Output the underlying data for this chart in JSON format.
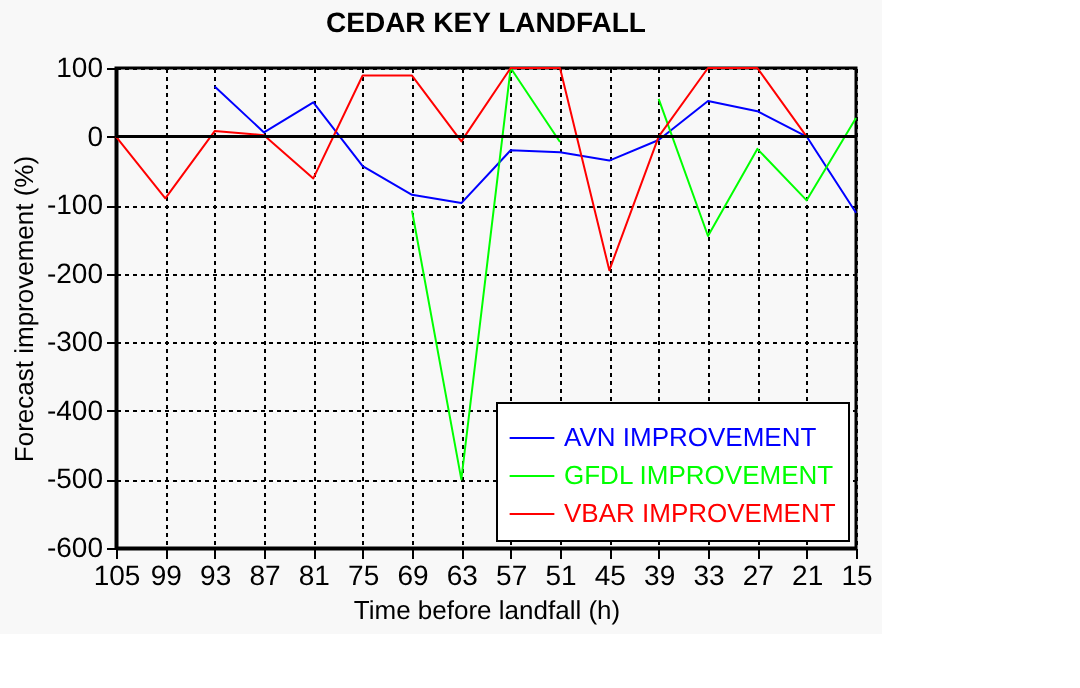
{
  "chart_data": {
    "type": "line",
    "title": "CEDAR KEY LANDFALL",
    "xlabel": "Time before landfall (h)",
    "ylabel": "Forecast improvement (%)",
    "x": [
      105,
      99,
      93,
      87,
      81,
      75,
      69,
      63,
      57,
      51,
      45,
      39,
      33,
      27,
      21,
      15
    ],
    "series": [
      {
        "name": "AVN IMPROVEMENT",
        "color": "#0000ff",
        "values": [
          null,
          null,
          73,
          6,
          50,
          -43,
          -85,
          -97,
          -20,
          -23,
          -35,
          -5,
          52,
          37,
          0,
          -111
        ]
      },
      {
        "name": "GFDL IMPROVEMENT",
        "color": "#00ff00",
        "values": [
          null,
          null,
          null,
          null,
          null,
          null,
          -108,
          -500,
          100,
          -8,
          null,
          55,
          -145,
          -18,
          -93,
          27
        ]
      },
      {
        "name": "VBAR IMPROVEMENT",
        "color": "#ff0000",
        "values": [
          0,
          -90,
          8,
          2,
          -61,
          89,
          89,
          -7,
          100,
          100,
          -195,
          0,
          100,
          100,
          0,
          null
        ]
      }
    ],
    "xlim": [
      105,
      15
    ],
    "xticks": [
      105,
      99,
      93,
      87,
      81,
      75,
      69,
      63,
      57,
      51,
      45,
      39,
      33,
      27,
      21,
      15
    ],
    "ylim": [
      -600,
      100
    ],
    "yticks": [
      -600,
      -500,
      -400,
      -300,
      -200,
      -100,
      0,
      100
    ],
    "ref_lines": [
      {
        "axis": "y",
        "value": 0,
        "color": "#000000"
      }
    ],
    "grid": true,
    "legend": "bottom right",
    "line_style": "solid",
    "marker": "none"
  }
}
